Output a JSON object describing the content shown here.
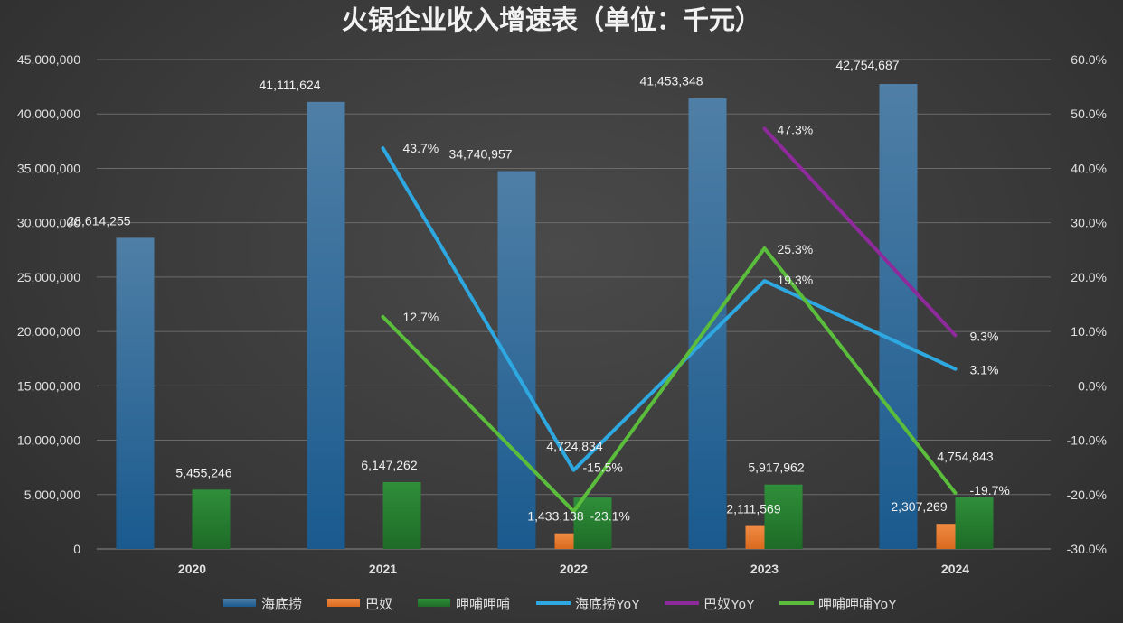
{
  "chart_data": {
    "type": "bar",
    "title": "火锅企业收入增速表（单位：千元）",
    "categories": [
      "2020",
      "2021",
      "2022",
      "2023",
      "2024"
    ],
    "ylim": [
      0,
      45000000
    ],
    "y2lim": [
      -30,
      60
    ],
    "y_ticks": [
      "0",
      "5,000,000",
      "10,000,000",
      "15,000,000",
      "20,000,000",
      "25,000,000",
      "30,000,000",
      "35,000,000",
      "40,000,000",
      "45,000,000"
    ],
    "y2_ticks": [
      "-30.0%",
      "-20.0%",
      "-10.0%",
      "0.0%",
      "10.0%",
      "20.0%",
      "30.0%",
      "40.0%",
      "50.0%",
      "60.0%"
    ],
    "grid": true,
    "legend_position": "bottom",
    "bar_series": [
      {
        "name": "海底捞",
        "color": "#2e75b6",
        "values": [
          28614255,
          41111624,
          34740957,
          41453348,
          42754687
        ],
        "labels": [
          "28,614,255",
          "41,111,624",
          "34,740,957",
          "41,453,348",
          "42,754,687"
        ]
      },
      {
        "name": "巴奴",
        "color": "#ed7d31",
        "values": [
          null,
          null,
          1433138,
          2111569,
          2307269
        ],
        "labels": [
          null,
          null,
          "1,433,138",
          "2,111,569",
          "2,307,269"
        ]
      },
      {
        "name": "呷哺呷哺",
        "color": "#2e8b2e",
        "values": [
          5455246,
          6147262,
          4724834,
          5917962,
          4754843
        ],
        "labels": [
          "5,455,246",
          "6,147,262",
          "4,724,834",
          "5,917,962",
          "4,754,843"
        ]
      }
    ],
    "line_series": [
      {
        "name": "海底捞YoY",
        "color": "#2ea8e0",
        "values": [
          null,
          43.7,
          -15.5,
          19.3,
          3.1
        ],
        "labels": [
          null,
          "43.7%",
          "-15.5%",
          "19.3%",
          "3.1%"
        ]
      },
      {
        "name": "巴奴YoY",
        "color": "#8e2a9c",
        "values": [
          null,
          null,
          null,
          47.3,
          9.3
        ],
        "labels": [
          null,
          null,
          null,
          "47.3%",
          "9.3%"
        ]
      },
      {
        "name": "呷哺呷哺YoY",
        "color": "#5bbd3c",
        "values": [
          null,
          12.7,
          -23.1,
          25.3,
          -19.7
        ],
        "labels": [
          null,
          "12.7%",
          "-23.1%",
          "25.3%",
          "-19.7%"
        ]
      }
    ]
  }
}
